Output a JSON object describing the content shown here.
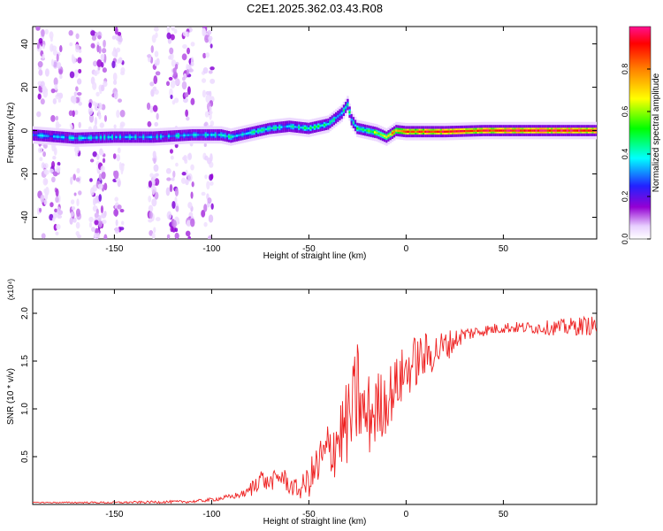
{
  "title": "C2E1.2025.362.03.43.R08",
  "chart_data": [
    {
      "type": "heatmap",
      "xlabel": "Height of straight line (km)",
      "ylabel": "Frequency (Hz)",
      "xlim": [
        -192,
        98
      ],
      "ylim": [
        -50,
        48
      ],
      "xticks": [
        -150,
        -100,
        -50,
        0,
        50
      ],
      "yticks": [
        -40,
        -20,
        0,
        20,
        40
      ],
      "colorbar": {
        "label": "Normalized spectral amplitude",
        "range": [
          0.0,
          1.0
        ],
        "ticks": [
          0.0,
          0.2,
          0.4,
          0.6,
          0.8
        ],
        "tick_labels": [
          "0.0",
          "0.2",
          "0.4",
          "0.6",
          "0.8"
        ]
      },
      "ridge": {
        "description_points_x": [
          -192,
          -170,
          -150,
          -130,
          -110,
          -95,
          -90,
          -80,
          -70,
          -60,
          -50,
          -40,
          -33,
          -30,
          -28,
          -25,
          -20,
          -15,
          -10,
          -5,
          0,
          10,
          20,
          40,
          60,
          80,
          98
        ],
        "frequency_hz": [
          -2,
          -3.5,
          -3,
          -3,
          -2,
          -2,
          -3,
          -1,
          1,
          2,
          1,
          3,
          8,
          12,
          5,
          1,
          0,
          -1,
          -3,
          0,
          -0.5,
          -0.5,
          -0.5,
          0,
          0,
          0,
          0
        ],
        "amplitude": [
          0.3,
          0.35,
          0.35,
          0.35,
          0.35,
          0.35,
          0.4,
          0.4,
          0.4,
          0.35,
          0.45,
          0.45,
          0.35,
          0.5,
          0.4,
          0.45,
          0.5,
          0.6,
          0.7,
          0.8,
          0.85,
          0.9,
          0.9,
          0.9,
          0.95,
          0.95,
          0.95
        ]
      },
      "noise_columns_x": [
        -187,
        -180,
        -170,
        -160,
        -157,
        -148,
        -130,
        -120,
        -112,
        -102
      ]
    },
    {
      "type": "line",
      "xlabel": "Height of straight line (km)",
      "ylabel": "SNR (10 * v/v)",
      "yscale_label": "(x10⁴)",
      "xlim": [
        -192,
        98
      ],
      "ylim": [
        0,
        2.25
      ],
      "xticks": [
        -150,
        -100,
        -50,
        0,
        50
      ],
      "yticks": [
        0.5,
        1.0,
        1.5,
        2.0
      ],
      "ytick_labels": [
        "0.5",
        "1.0",
        "1.5",
        "2.0"
      ],
      "series": [
        {
          "color": "#ee2222",
          "x": [
            -192,
            -150,
            -110,
            -100,
            -90,
            -82,
            -78,
            -75,
            -72,
            -68,
            -64,
            -60,
            -55,
            -50,
            -45,
            -40,
            -35,
            -30,
            -27,
            -25,
            -22,
            -18,
            -15,
            -10,
            -5,
            0,
            5,
            10,
            15,
            20,
            25,
            30,
            40,
            50,
            60,
            70,
            80,
            90,
            98
          ],
          "y": [
            0.02,
            0.02,
            0.03,
            0.05,
            0.08,
            0.12,
            0.2,
            0.3,
            0.22,
            0.25,
            0.3,
            0.2,
            0.15,
            0.25,
            0.4,
            0.55,
            0.7,
            0.85,
            0.95,
            1.2,
            0.9,
            0.95,
            1.0,
            1.1,
            1.25,
            1.4,
            1.5,
            1.55,
            1.6,
            1.65,
            1.72,
            1.78,
            1.82,
            1.85,
            1.85,
            1.85,
            1.85,
            1.87,
            1.87
          ],
          "noise": [
            0.005,
            0.01,
            0.015,
            0.02,
            0.03,
            0.04,
            0.12,
            0.1,
            0.08,
            0.1,
            0.12,
            0.1,
            0.1,
            0.18,
            0.3,
            0.35,
            0.4,
            0.45,
            0.55,
            0.6,
            0.45,
            0.45,
            0.4,
            0.35,
            0.3,
            0.3,
            0.28,
            0.25,
            0.2,
            0.18,
            0.12,
            0.08,
            0.06,
            0.06,
            0.06,
            0.07,
            0.09,
            0.1,
            0.1
          ]
        }
      ]
    }
  ]
}
